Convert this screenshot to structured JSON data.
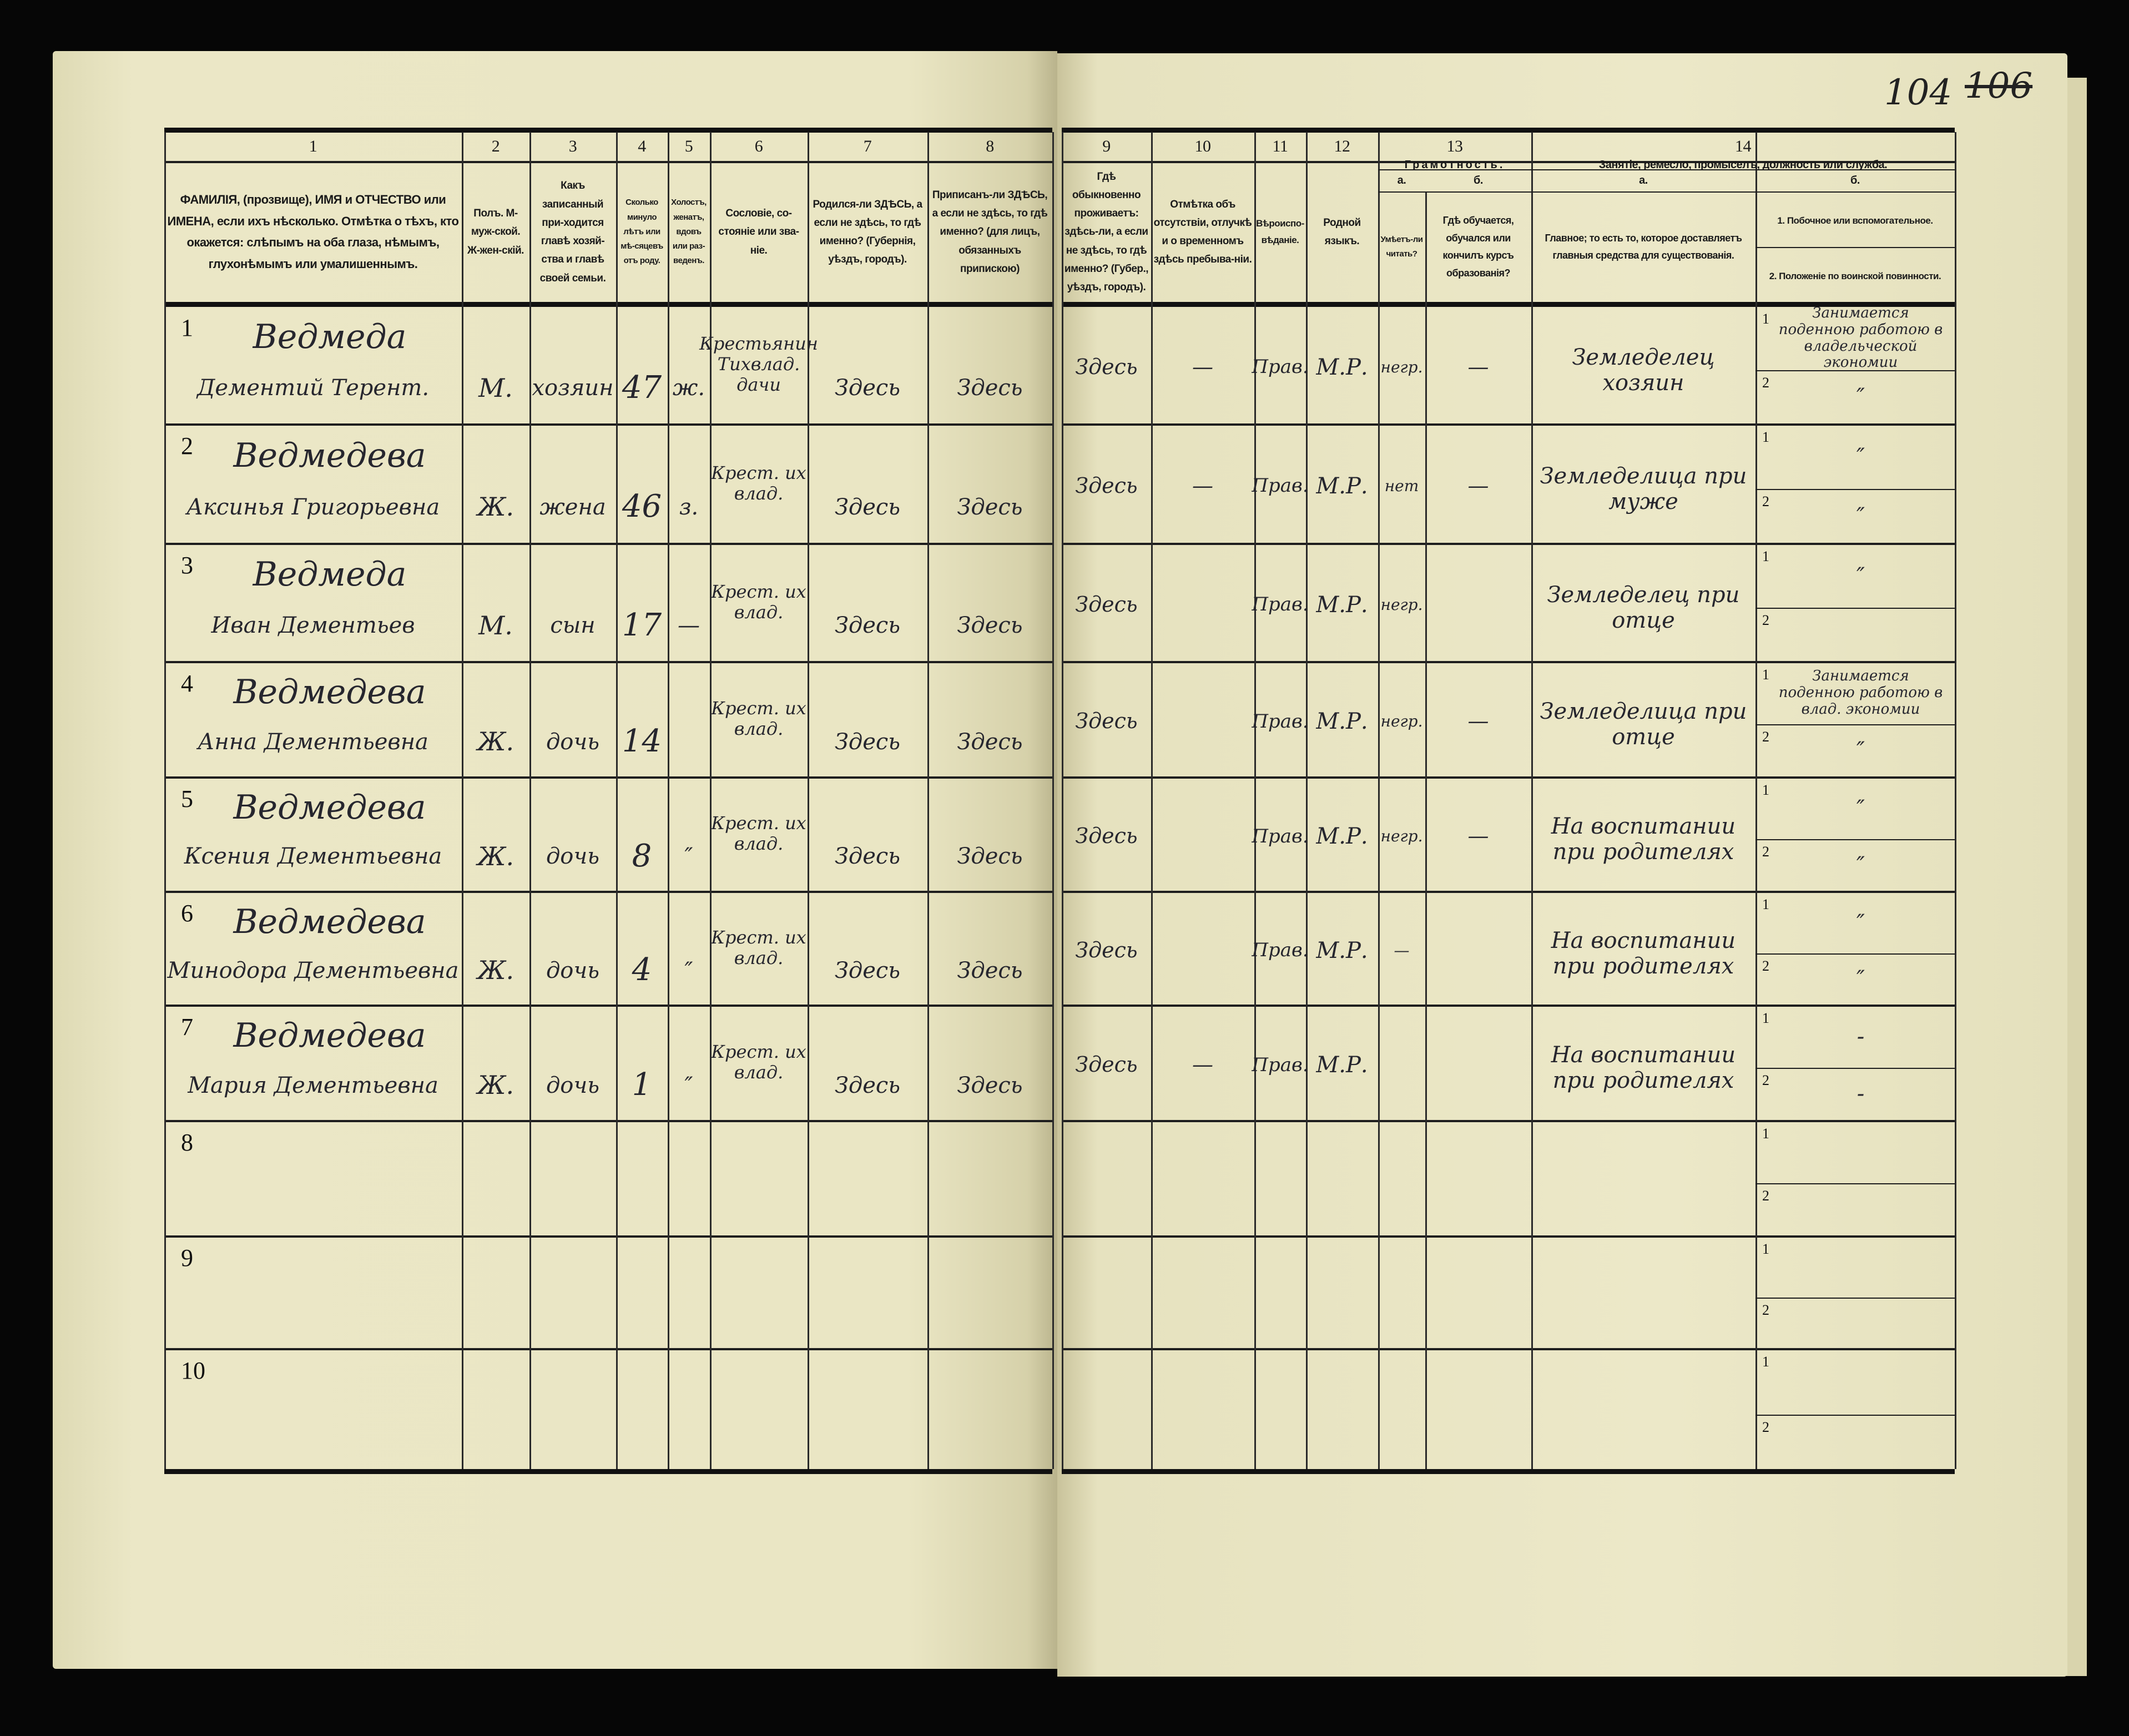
{
  "page_numbers": {
    "current": "104",
    "crossed_out": "106"
  },
  "left_header": [
    {
      "num": "1",
      "text": "ФАМИЛІЯ, (прозвище), ИМЯ и ОТЧЕСТВО или ИМЕНА, если ихъ нѣсколько. Отмѣтка о тѣхъ, кто окажется: слѣпымъ на оба глаза, нѣмымъ, глухонѣмымъ или умалишеннымъ."
    },
    {
      "num": "2",
      "text": "Полъ. М-муж-ской. Ж-жен-скій."
    },
    {
      "num": "3",
      "text": "Какъ записанный при-ходится главѣ хозяй-ства и главѣ своей семьи."
    },
    {
      "num": "4",
      "text": "Сколько минуло лѣтъ или мѣ-сяцевъ отъ роду."
    },
    {
      "num": "5",
      "text": "Холостъ, женатъ, вдовъ или раз-веденъ."
    },
    {
      "num": "6",
      "text": "Сословіе, со-стояніе или зва-ніе."
    },
    {
      "num": "7",
      "text": "Родился-ли ЗДѢСЬ, а если не здѣсь, то гдѣ именно? (Губернія, уѣздъ, городъ)."
    },
    {
      "num": "8",
      "text": "Приписанъ-ли ЗДѢСЬ, а если не здѣсь, то гдѣ именно? (для лицъ, обязанныхъ припискою)"
    }
  ],
  "right_header": {
    "col9": {
      "num": "9",
      "text": "Гдѣ обыкновенно проживаетъ: здѣсь-ли, а если не здѣсь, то гдѣ именно? (Губер., уѣздъ, городъ)."
    },
    "col10": {
      "num": "10",
      "text": "Отмѣтка объ отсутствіи, отлучкѣ и о временномъ здѣсь пребыва-ніи."
    },
    "col11": {
      "num": "11",
      "text": "Вѣроиспо-вѣданіе."
    },
    "col12": {
      "num": "12",
      "text": "Родной языкъ."
    },
    "col13": {
      "num": "13",
      "title": "Грамотность.",
      "a_label": "а.",
      "a_text": "Умѣетъ-ли читать?",
      "b_label": "б.",
      "b_text": "Гдѣ обучается, обучался или кончилъ курсъ образованія?"
    },
    "col14": {
      "num": "14",
      "title": "Занятіе, ремесло, промыселъ, должность или служба.",
      "a_label": "а.",
      "a_text": "Главное; то есть то, которое доставляетъ главныя средства для существованія.",
      "b_label": "б.",
      "b1_text": "1. Побочное или вспомогательное.",
      "b2_text": "2. Положеніе по воинской повинности."
    }
  },
  "rows": [
    {
      "n": "1",
      "surname": "Ведмеда",
      "name": "Дементий Терент.",
      "sex": "М.",
      "relation": "хозяин",
      "age": "47",
      "marital": "ж.",
      "estate": "Крестьянин Тихвлад. дачи",
      "born": "Здесь",
      "registered": "Здесь",
      "resides": "Здесь",
      "absence": "—",
      "religion": "Прав.",
      "language": "М.Р.",
      "literate": "негр.",
      "education": "—",
      "occupation": "Земледелец хозяин",
      "secondary": "Занимается поденною работою в владельческой экономии",
      "military": "″"
    },
    {
      "n": "2",
      "surname": "Ведмедева",
      "name": "Аксинья Григорьевна",
      "sex": "Ж.",
      "relation": "жена",
      "age": "46",
      "marital": "з.",
      "estate": "Крест. их влад.",
      "born": "Здесь",
      "registered": "Здесь",
      "resides": "Здесь",
      "absence": "—",
      "religion": "Прав.",
      "language": "М.Р.",
      "literate": "нет",
      "education": "—",
      "occupation": "Земледелица при муже",
      "secondary": "″",
      "military": "″"
    },
    {
      "n": "3",
      "surname": "Ведмеда",
      "name": "Иван Дементьев",
      "sex": "М.",
      "relation": "сын",
      "age": "17",
      "marital": "—",
      "estate": "Крест. их влад.",
      "born": "Здесь",
      "registered": "Здесь",
      "resides": "Здесь",
      "absence": "",
      "religion": "Прав.",
      "language": "М.Р.",
      "literate": "негр.",
      "education": "",
      "occupation": "Земледелец при отце",
      "secondary": "″",
      "military": ""
    },
    {
      "n": "4",
      "surname": "Ведмедева",
      "name": "Анна Дементьевна",
      "sex": "Ж.",
      "relation": "дочь",
      "age": "14",
      "marital": "",
      "estate": "Крест. их влад.",
      "born": "Здесь",
      "registered": "Здесь",
      "resides": "Здесь",
      "absence": "",
      "religion": "Прав.",
      "language": "М.Р.",
      "literate": "негр.",
      "education": "—",
      "occupation": "Земледелица при отце",
      "secondary": "Занимается поденною работою в влад. экономии",
      "military": "″"
    },
    {
      "n": "5",
      "surname": "Ведмедева",
      "name": "Ксения Дементьевна",
      "sex": "Ж.",
      "relation": "дочь",
      "age": "8",
      "marital": "″",
      "estate": "Крест. их влад.",
      "born": "Здесь",
      "registered": "Здесь",
      "resides": "Здесь",
      "absence": "",
      "religion": "Прав.",
      "language": "М.Р.",
      "literate": "негр.",
      "education": "—",
      "occupation": "На воспитании при родителях",
      "secondary": "″",
      "military": "″"
    },
    {
      "n": "6",
      "surname": "Ведмедева",
      "name": "Минодора Дементьевна",
      "sex": "Ж.",
      "relation": "дочь",
      "age": "4",
      "marital": "″",
      "estate": "Крест. их влад.",
      "born": "Здесь",
      "registered": "Здесь",
      "resides": "Здесь",
      "absence": "",
      "religion": "Прав.",
      "language": "М.Р.",
      "literate": "—",
      "education": "",
      "occupation": "На воспитании при родителях",
      "secondary": "″",
      "military": "″"
    },
    {
      "n": "7",
      "surname": "Ведмедева",
      "name": "Мария Дементьевна",
      "sex": "Ж.",
      "relation": "дочь",
      "age": "1",
      "marital": "″",
      "estate": "Крест. их влад.",
      "born": "Здесь",
      "registered": "Здесь",
      "resides": "Здесь",
      "absence": "—",
      "religion": "Прав.",
      "language": "М.Р.",
      "literate": "",
      "education": "",
      "occupation": "На воспитании при родителях",
      "secondary": "-",
      "military": "-"
    },
    {
      "n": "8"
    },
    {
      "n": "9"
    },
    {
      "n": "10"
    }
  ],
  "sub_labels": {
    "one": "1",
    "two": "2"
  }
}
